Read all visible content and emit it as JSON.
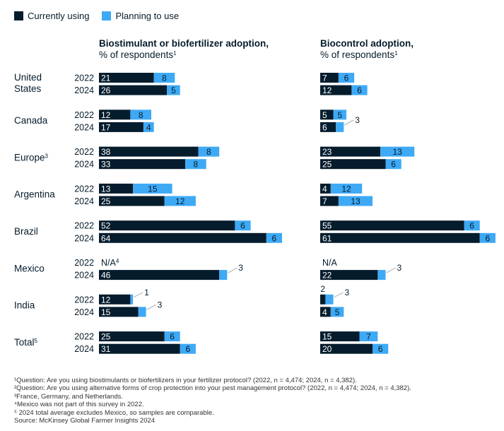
{
  "legend": {
    "current_label": "Currently using",
    "planning_label": "Planning to use"
  },
  "colors": {
    "current": "#051c2c",
    "planning": "#3ea9f5",
    "text": "#051c2c"
  },
  "chart_data": {
    "type": "bar",
    "orientation": "horizontal",
    "stacked": true,
    "years": [
      "2022",
      "2024"
    ],
    "categories": [
      "United States",
      "Canada",
      "Europe",
      "Argentina",
      "Brazil",
      "Mexico",
      "India",
      "Total"
    ],
    "category_labels": [
      {
        "lines": [
          "United",
          "States"
        ],
        "sup": ""
      },
      {
        "lines": [
          "Canada"
        ],
        "sup": ""
      },
      {
        "lines": [
          "Europe"
        ],
        "sup": "3"
      },
      {
        "lines": [
          "Argentina"
        ],
        "sup": ""
      },
      {
        "lines": [
          "Brazil"
        ],
        "sup": ""
      },
      {
        "lines": [
          "Mexico"
        ],
        "sup": ""
      },
      {
        "lines": [
          "India"
        ],
        "sup": ""
      },
      {
        "lines": [
          "Total"
        ],
        "sup": "5"
      }
    ],
    "panels": [
      {
        "title": "Biostimulant or biofertilizer adoption,",
        "subtitle": "% of respondents",
        "subtitle_sup": "1",
        "series": [
          {
            "name": "Currently using",
            "values": [
              [
                21,
                26
              ],
              [
                12,
                17
              ],
              [
                38,
                33
              ],
              [
                13,
                25
              ],
              [
                52,
                64
              ],
              [
                null,
                46
              ],
              [
                12,
                15
              ],
              [
                25,
                31
              ]
            ]
          },
          {
            "name": "Planning to use",
            "values": [
              [
                8,
                5
              ],
              [
                8,
                4
              ],
              [
                8,
                8
              ],
              [
                15,
                12
              ],
              [
                6,
                6
              ],
              [
                null,
                3
              ],
              [
                1,
                3
              ],
              [
                6,
                6
              ]
            ]
          }
        ],
        "na": [
          [
            false,
            false
          ],
          [
            false,
            false
          ],
          [
            false,
            false
          ],
          [
            false,
            false
          ],
          [
            false,
            false
          ],
          [
            true,
            false
          ],
          [
            false,
            false
          ],
          [
            false,
            false
          ]
        ],
        "na_text": "N/A",
        "na_sup": "4"
      },
      {
        "title": "Biocontrol adoption,",
        "subtitle": "% of respondents",
        "subtitle_sup": "1",
        "series": [
          {
            "name": "Currently using",
            "values": [
              [
                7,
                12
              ],
              [
                5,
                6
              ],
              [
                23,
                25
              ],
              [
                4,
                7
              ],
              [
                55,
                61
              ],
              [
                null,
                22
              ],
              [
                2,
                4
              ],
              [
                15,
                20
              ]
            ]
          },
          {
            "name": "Planning to use",
            "values": [
              [
                6,
                6
              ],
              [
                5,
                3
              ],
              [
                13,
                6
              ],
              [
                12,
                13
              ],
              [
                6,
                6
              ],
              [
                null,
                3
              ],
              [
                3,
                5
              ],
              [
                7,
                6
              ]
            ]
          }
        ],
        "na": [
          [
            false,
            false
          ],
          [
            false,
            false
          ],
          [
            false,
            false
          ],
          [
            false,
            false
          ],
          [
            false,
            false
          ],
          [
            true,
            false
          ],
          [
            false,
            false
          ],
          [
            false,
            false
          ]
        ],
        "na_text": "N/A",
        "na_sup": ""
      }
    ]
  },
  "footnotes": [
    "¹Question: Are you using biostimulants or biofertilizers in your fertilizer protocol? (2022, n = 4,474; 2024, n = 4,382).",
    "²Question: Are you using alternative forms of crop protection into your pest management protocol? (2022, n = 4,474; 2024, n = 4,382).",
    "³France, Germany, and Netherlands.",
    "⁴Mexico was not part of this survey in 2022.",
    "⁵ 2024 total average excludes Mexico, so samples are comparable.",
    " Source: McKinsey Global Farmer Insights 2024"
  ]
}
